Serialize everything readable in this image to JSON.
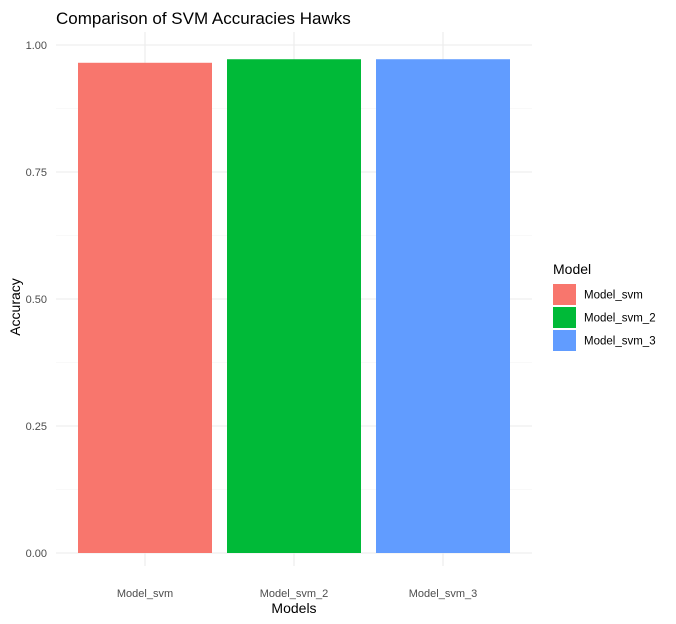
{
  "chart_data": {
    "type": "bar",
    "title": "Comparison of SVM Accuracies  Hawks",
    "xlabel": "Models",
    "ylabel": "Accuracy",
    "categories": [
      "Model_svm",
      "Model_svm_2",
      "Model_svm_3"
    ],
    "values": [
      0.965,
      0.972,
      0.972
    ],
    "colors": [
      "#F8766D",
      "#00BA38",
      "#619CFF"
    ],
    "ylim": [
      0,
      1.0
    ],
    "yticks": [
      0.0,
      0.25,
      0.5,
      0.75,
      1.0
    ],
    "ytick_labels": [
      "0.00",
      "0.25",
      "0.50",
      "0.75",
      "1.00"
    ],
    "grid": true,
    "legend": {
      "title": "Model",
      "placement": "right",
      "entries": [
        "Model_svm",
        "Model_svm_2",
        "Model_svm_3"
      ]
    }
  }
}
